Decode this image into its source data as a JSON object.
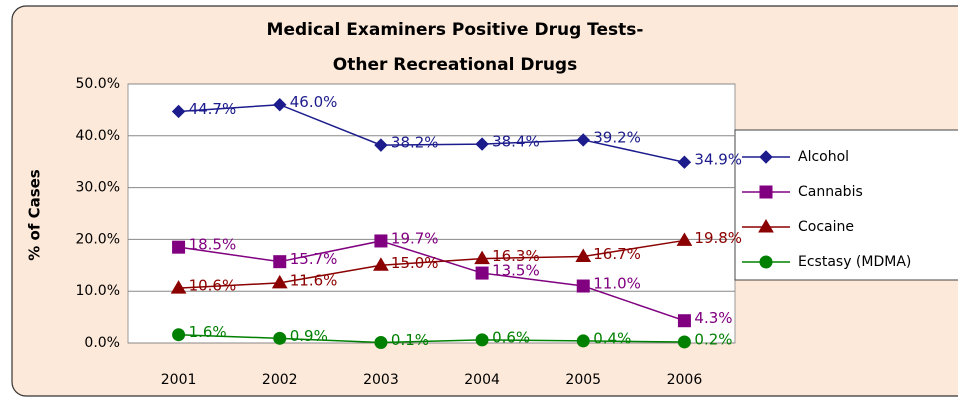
{
  "chart_data": {
    "type": "line",
    "title": "Medical Examiners Positive Drug Tests-",
    "subtitle": "Other Recreational Drugs",
    "y_label": "% of Cases",
    "categories": [
      "2001",
      "2002",
      "2003",
      "2004",
      "2005",
      "2006"
    ],
    "ylim": [
      0,
      50
    ],
    "yticks": [
      {
        "value": 0,
        "label": "0.0%"
      },
      {
        "value": 10,
        "label": "10.0%"
      },
      {
        "value": 20,
        "label": "20.0%"
      },
      {
        "value": 30,
        "label": "30.0%"
      },
      {
        "value": 40,
        "label": "40.0%"
      },
      {
        "value": 50,
        "label": "50.0%"
      }
    ],
    "grid": true,
    "legend": "right",
    "series": [
      {
        "name": "Alcohol",
        "color": "#1c1c8c",
        "marker": "diamond",
        "values": [
          44.7,
          46.0,
          38.2,
          38.4,
          39.2,
          34.9
        ],
        "value_labels": [
          "44.7%",
          "46.0%",
          "38.2%",
          "38.4%",
          "39.2%",
          "34.9%"
        ]
      },
      {
        "name": "Cannabis",
        "color": "#800080",
        "marker": "square",
        "values": [
          18.5,
          15.7,
          19.7,
          13.5,
          11.0,
          4.3
        ],
        "value_labels": [
          "18.5%",
          "15.7%",
          "19.7%",
          "13.5%",
          "11.0%",
          "4.3%"
        ]
      },
      {
        "name": "Cocaine",
        "color": "#8b0000",
        "marker": "triangle",
        "values": [
          10.6,
          11.6,
          15.0,
          16.3,
          16.7,
          19.8
        ],
        "value_labels": [
          "10.6%",
          "11.6%",
          "15.0%",
          "16.3%",
          "16.7%",
          "19.8%"
        ]
      },
      {
        "name": "Ecstasy (MDMA)",
        "color": "#008000",
        "marker": "circle",
        "values": [
          1.6,
          0.9,
          0.1,
          0.6,
          0.4,
          0.2
        ],
        "value_labels": [
          "1.6%",
          "0.9%",
          "0.1%",
          "0.6%",
          "0.4%",
          "0.2%"
        ]
      }
    ]
  }
}
